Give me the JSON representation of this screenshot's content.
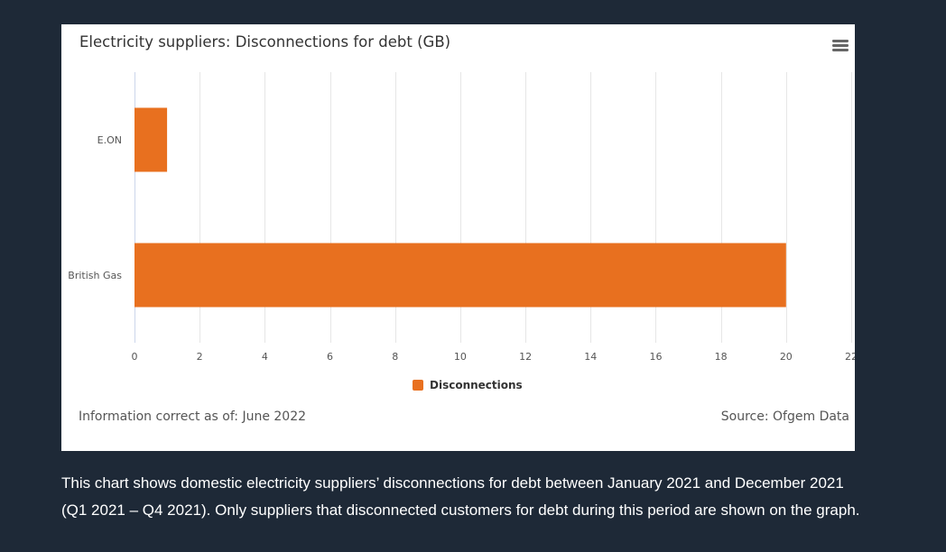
{
  "footer": {
    "info": "Information correct as of: June 2022",
    "source": "Source: Ofgem Data"
  },
  "caption": "This chart shows domestic electricity suppliers’ disconnections for debt between January 2021 and December 2021 (Q1 2021 – Q4 2021). Only suppliers that disconnected customers for debt during this period are shown on the graph.",
  "colors": {
    "page_background": "#1e2937",
    "card_background": "#ffffff",
    "bar": "#e8701f",
    "grid": "#e6e6e6",
    "menu_icon": "#666666"
  },
  "menu_icon": "hamburger-icon",
  "chart_data": {
    "type": "bar",
    "orientation": "horizontal",
    "title": "Electricity suppliers: Disconnections for debt (GB)",
    "categories": [
      "E.ON",
      "British Gas"
    ],
    "series": [
      {
        "name": "Disconnections",
        "values": [
          1,
          20
        ]
      }
    ],
    "xlim": [
      0,
      22
    ],
    "xticks": [
      0,
      2,
      4,
      6,
      8,
      10,
      12,
      14,
      16,
      18,
      20,
      22
    ],
    "xlabel": "",
    "ylabel": "",
    "grid": true,
    "legend": "bottom-center"
  }
}
